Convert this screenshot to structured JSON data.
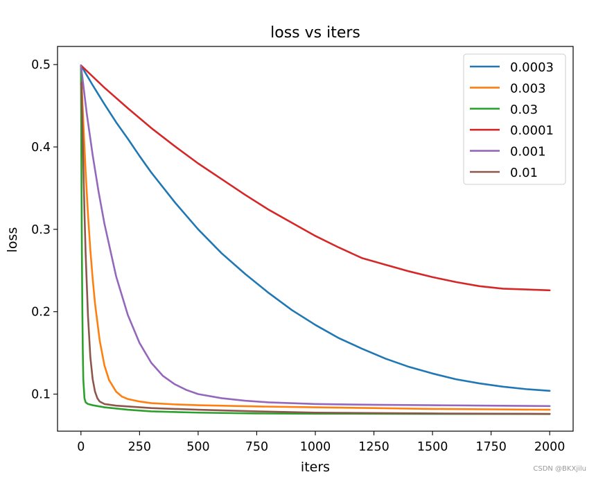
{
  "chart_data": {
    "type": "line",
    "title": "loss vs iters",
    "xlabel": "iters",
    "ylabel": "loss",
    "xlim": [
      -100,
      2100
    ],
    "ylim": [
      0.055,
      0.522
    ],
    "xticks": [
      0,
      250,
      500,
      750,
      1000,
      1250,
      1500,
      1750,
      2000
    ],
    "yticks": [
      0.1,
      0.2,
      0.3,
      0.4,
      0.5
    ],
    "xtick_labels": [
      "0",
      "250",
      "500",
      "750",
      "1000",
      "1250",
      "1500",
      "1750",
      "2000"
    ],
    "ytick_labels": [
      "0.1",
      "0.2",
      "0.3",
      "0.4",
      "0.5"
    ],
    "grid": false,
    "legend": "top-right",
    "series": [
      {
        "name": "0.0003",
        "color": "#1f77b4",
        "x": [
          0,
          50,
          100,
          150,
          200,
          250,
          300,
          400,
          500,
          600,
          700,
          800,
          900,
          1000,
          1100,
          1200,
          1300,
          1400,
          1500,
          1600,
          1700,
          1800,
          1900,
          2000
        ],
        "y": [
          0.499,
          0.475,
          0.452,
          0.43,
          0.41,
          0.389,
          0.369,
          0.333,
          0.3,
          0.271,
          0.246,
          0.223,
          0.202,
          0.184,
          0.168,
          0.155,
          0.143,
          0.133,
          0.125,
          0.118,
          0.113,
          0.109,
          0.106,
          0.104
        ]
      },
      {
        "name": "0.003",
        "color": "#ff7f0e",
        "x": [
          0,
          10,
          20,
          30,
          40,
          50,
          60,
          80,
          100,
          120,
          150,
          175,
          200,
          250,
          300,
          400,
          500,
          750,
          1000,
          1250,
          1500,
          1750,
          2000
        ],
        "y": [
          0.499,
          0.43,
          0.37,
          0.318,
          0.275,
          0.24,
          0.21,
          0.165,
          0.135,
          0.117,
          0.103,
          0.097,
          0.094,
          0.091,
          0.089,
          0.0875,
          0.0865,
          0.085,
          0.084,
          0.083,
          0.082,
          0.0815,
          0.081
        ]
      },
      {
        "name": "0.03",
        "color": "#2ca02c",
        "x": [
          0,
          2,
          4,
          6,
          8,
          10,
          15,
          20,
          30,
          50,
          100,
          200,
          300,
          500,
          750,
          1000,
          1500,
          2000
        ],
        "y": [
          0.499,
          0.37,
          0.27,
          0.2,
          0.15,
          0.118,
          0.095,
          0.09,
          0.088,
          0.0865,
          0.084,
          0.081,
          0.079,
          0.0775,
          0.0765,
          0.0762,
          0.076,
          0.0758
        ]
      },
      {
        "name": "0.0001",
        "color": "#d62728",
        "x": [
          0,
          100,
          200,
          300,
          400,
          500,
          600,
          700,
          800,
          900,
          1000,
          1100,
          1200,
          1300,
          1400,
          1500,
          1600,
          1700,
          1800,
          1900,
          2000
        ],
        "y": [
          0.499,
          0.472,
          0.447,
          0.423,
          0.401,
          0.38,
          0.361,
          0.342,
          0.324,
          0.308,
          0.292,
          0.278,
          0.265,
          0.257,
          0.249,
          0.242,
          0.236,
          0.231,
          0.228,
          0.227,
          0.226
        ]
      },
      {
        "name": "0.001",
        "color": "#9467bd",
        "x": [
          0,
          25,
          50,
          75,
          100,
          150,
          200,
          250,
          300,
          350,
          400,
          450,
          500,
          600,
          700,
          800,
          1000,
          1250,
          1500,
          1750,
          2000
        ],
        "y": [
          0.499,
          0.44,
          0.39,
          0.346,
          0.307,
          0.243,
          0.196,
          0.162,
          0.138,
          0.122,
          0.112,
          0.105,
          0.1,
          0.095,
          0.092,
          0.09,
          0.088,
          0.087,
          0.0865,
          0.086,
          0.0855
        ]
      },
      {
        "name": "0.01",
        "color": "#8c564b",
        "x": [
          0,
          2,
          5,
          10,
          15,
          20,
          30,
          40,
          50,
          60,
          70,
          80,
          100,
          150,
          200,
          300,
          500,
          750,
          1000,
          1500,
          2000
        ],
        "y": [
          0.476,
          0.478,
          0.44,
          0.38,
          0.32,
          0.27,
          0.195,
          0.145,
          0.118,
          0.103,
          0.095,
          0.091,
          0.088,
          0.086,
          0.085,
          0.083,
          0.081,
          0.079,
          0.0775,
          0.0765,
          0.076
        ]
      }
    ]
  },
  "watermark": "CSDN @BKXjilu"
}
